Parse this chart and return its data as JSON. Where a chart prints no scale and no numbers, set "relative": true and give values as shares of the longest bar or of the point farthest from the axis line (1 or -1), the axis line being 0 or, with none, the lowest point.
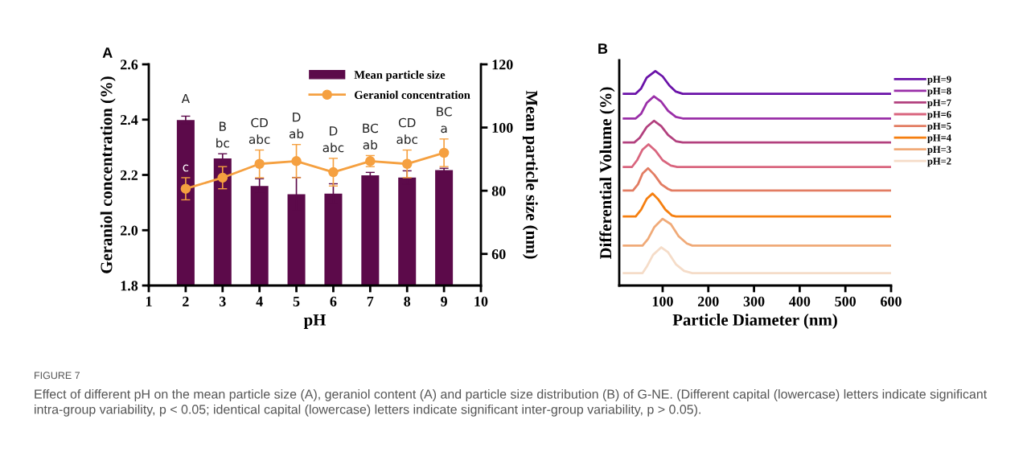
{
  "chart_data": [
    {
      "type": "bar",
      "title": "A",
      "xlabel": "pH",
      "ylabel": "Geraniol concentration (%)",
      "y2label": "Mean particle size (nm)",
      "xlim": [
        1,
        10
      ],
      "xticks": [
        1,
        2,
        3,
        4,
        5,
        6,
        7,
        8,
        9,
        10
      ],
      "ylim": [
        1.8,
        2.6
      ],
      "yticks": [
        1.8,
        {
          "value": 2,
          "label": "2.0"
        },
        2.2,
        2.4,
        2.6
      ],
      "y2lim": [
        50,
        120
      ],
      "y2ticks": [
        60,
        80,
        100,
        120
      ],
      "x": [
        2,
        3,
        4,
        5,
        6,
        7,
        8,
        9
      ],
      "series": [
        {
          "name": "Mean particle size",
          "type": "bar",
          "axis": "y2",
          "color": "#5c0a4a",
          "values": [
            102.4,
            90.2,
            81.5,
            78.9,
            79.1,
            84.9,
            84.2,
            86.5
          ],
          "errors": [
            1.2,
            1.5,
            2.3,
            5.3,
            3.1,
            0.9,
            2.1,
            0.6
          ]
        },
        {
          "name": "Geraniol concentration",
          "type": "line",
          "color": "#f5a040",
          "marker": "circle",
          "values": [
            2.15,
            2.19,
            2.24,
            2.25,
            2.21,
            2.25,
            2.24,
            2.28
          ],
          "errors": [
            0.04,
            0.04,
            0.05,
            0.06,
            0.05,
            0.02,
            0.05,
            0.05
          ]
        }
      ],
      "legend": "top right",
      "grid": false,
      "annotations": [
        "A",
        "c",
        "B",
        "bc",
        "CD",
        "abc",
        "D",
        "ab",
        "D",
        "abc",
        "BC",
        "ab",
        "CD",
        "abc",
        "BC",
        "a",
        "FIGURE 7",
        "Effect of different pH on the mean particle size (A), geraniol content (A) and particle size distribution (B) of G-NE. (Different capital (lowercase) letters indicate significant intra-group variability, p < 0.05; identical capital (lowercase) letters indicate significant inter-group variability, p > 0.05)."
      ]
    },
    {
      "type": "line",
      "title": "B",
      "xlabel": "Particle Diameter (nm)",
      "ylabel": "Differential Volume (%)",
      "relative": true,
      "xlim": [
        5,
        600
      ],
      "xticks": [
        100,
        200,
        300,
        400,
        500,
        600
      ],
      "legend": "right",
      "grid": false,
      "marker": "none",
      "series": [
        {
          "name": "pH=9",
          "color": "#6a12a8",
          "x": [
            15,
            41,
            53,
            65,
            84,
            100,
            115,
            129,
            144,
            600
          ],
          "values": [
            0.894,
            0.894,
            0.919,
            0.969,
            1.0,
            0.975,
            0.932,
            0.904,
            0.894,
            0.894
          ]
        },
        {
          "name": "pH=8",
          "color": "#9a2fa8",
          "x": [
            15,
            41,
            53,
            65,
            81,
            97,
            112,
            129,
            144,
            600
          ],
          "values": [
            0.779,
            0.779,
            0.801,
            0.851,
            0.882,
            0.857,
            0.814,
            0.786,
            0.779,
            0.779
          ]
        },
        {
          "name": "pH=7",
          "color": "#b2407e",
          "x": [
            15,
            38,
            50,
            65,
            81,
            97,
            112,
            129,
            144,
            600
          ],
          "values": [
            0.667,
            0.667,
            0.689,
            0.739,
            0.768,
            0.743,
            0.702,
            0.673,
            0.667,
            0.667
          ]
        },
        {
          "name": "pH=6",
          "color": "#d9657e",
          "x": [
            15,
            33,
            44,
            56,
            69,
            85,
            100,
            118,
            132,
            600
          ],
          "values": [
            0.553,
            0.553,
            0.584,
            0.634,
            0.658,
            0.627,
            0.584,
            0.559,
            0.553,
            0.553
          ]
        },
        {
          "name": "pH=5",
          "color": "#e27c62",
          "x": [
            15,
            35,
            46,
            56,
            68,
            82,
            97,
            112,
            120,
            600
          ],
          "values": [
            0.443,
            0.443,
            0.472,
            0.522,
            0.547,
            0.516,
            0.472,
            0.45,
            0.443,
            0.443
          ]
        },
        {
          "name": "pH=4",
          "color": "#f57f10",
          "x": [
            15,
            41,
            53,
            65,
            78,
            91,
            106,
            120,
            129,
            600
          ],
          "values": [
            0.322,
            0.322,
            0.354,
            0.404,
            0.429,
            0.4,
            0.354,
            0.327,
            0.322,
            0.322
          ]
        },
        {
          "name": "pH=3",
          "color": "#f0aa78",
          "x": [
            15,
            56,
            68,
            82,
            100,
            118,
            135,
            153,
            165,
            600
          ],
          "values": [
            0.186,
            0.186,
            0.217,
            0.273,
            0.311,
            0.286,
            0.23,
            0.196,
            0.186,
            0.186
          ]
        },
        {
          "name": "pH=2",
          "color": "#f5dcc8",
          "x": [
            15,
            56,
            65,
            79,
            97,
            112,
            129,
            147,
            165,
            600
          ],
          "values": [
            0.058,
            0.058,
            0.087,
            0.143,
            0.178,
            0.155,
            0.099,
            0.068,
            0.058,
            0.058
          ]
        }
      ]
    }
  ]
}
